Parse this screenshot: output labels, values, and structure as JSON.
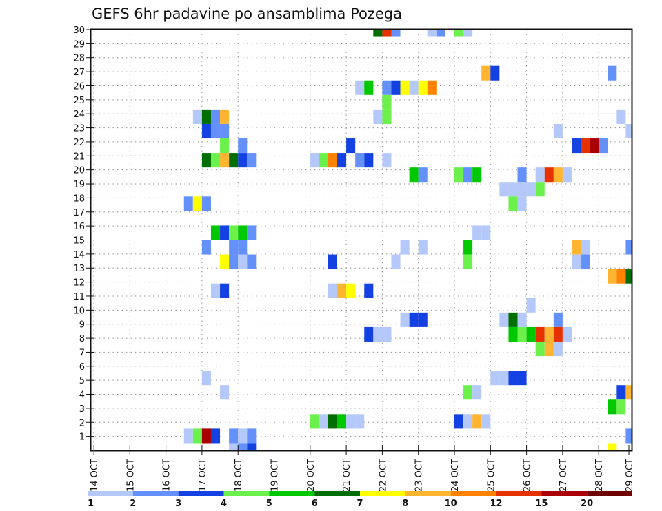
{
  "chart_data": {
    "type": "heatmap",
    "title": "GEFS 6hr padavine po ansamblima Pozega",
    "xlabel": "",
    "ylabel": "",
    "x_tick_labels": [
      "14 OCT",
      "15 OCT",
      "16 OCT",
      "17 OCT",
      "18 OCT",
      "19 OCT",
      "20 OCT",
      "21 OCT",
      "22 OCT",
      "23 OCT",
      "24 OCT",
      "25 OCT",
      "26 OCT",
      "27 OCT",
      "28 OCT",
      "29 OCT"
    ],
    "y_tick_labels": [
      "1",
      "2",
      "3",
      "4",
      "5",
      "6",
      "7",
      "8",
      "9",
      "10",
      "11",
      "12",
      "13",
      "14",
      "15",
      "16",
      "17",
      "18",
      "19",
      "20",
      "21",
      "22",
      "23",
      "24",
      "25",
      "26",
      "27",
      "28",
      "29",
      "30"
    ],
    "ylim": [
      0,
      30
    ],
    "members": 30,
    "time_step_hours": 6,
    "time_columns": 60,
    "grid": true,
    "colorbar": {
      "placement": "bottom",
      "levels": [
        1,
        2,
        3,
        4,
        5,
        6,
        7,
        8,
        10,
        12,
        15,
        20
      ],
      "colors": [
        "#b4c8fa",
        "#6490fa",
        "#1441e1",
        "#6cf04c",
        "#00c800",
        "#006e00",
        "#ffff00",
        "#ffb432",
        "#ff8200",
        "#e63200",
        "#aa0000",
        "#6e0000"
      ]
    },
    "cells_format": [
      "hours_since_14_OCT_00Z",
      "member",
      "precip_class_lower_bound_mm"
    ],
    "cells": [
      [
        186,
        29,
        6
      ],
      [
        192,
        29,
        12
      ],
      [
        198,
        29,
        2
      ],
      [
        222,
        29,
        1
      ],
      [
        228,
        29,
        2
      ],
      [
        240,
        29,
        4
      ],
      [
        246,
        29,
        1
      ],
      [
        258,
        26,
        8
      ],
      [
        264,
        26,
        3
      ],
      [
        342,
        26,
        2
      ],
      [
        174,
        25,
        1
      ],
      [
        180,
        25,
        5
      ],
      [
        192,
        25,
        2
      ],
      [
        198,
        25,
        3
      ],
      [
        204,
        25,
        7
      ],
      [
        210,
        25,
        1
      ],
      [
        216,
        25,
        7
      ],
      [
        222,
        25,
        10
      ],
      [
        192,
        24,
        4
      ],
      [
        66,
        23,
        1
      ],
      [
        72,
        23,
        6
      ],
      [
        78,
        23,
        2
      ],
      [
        84,
        23,
        8
      ],
      [
        186,
        23,
        1
      ],
      [
        192,
        23,
        4
      ],
      [
        348,
        23,
        1
      ],
      [
        72,
        22,
        3
      ],
      [
        78,
        22,
        2
      ],
      [
        84,
        22,
        2
      ],
      [
        306,
        22,
        1
      ],
      [
        354,
        22,
        1
      ],
      [
        84,
        21,
        4
      ],
      [
        96,
        21,
        2
      ],
      [
        168,
        21,
        3
      ],
      [
        318,
        21,
        3
      ],
      [
        324,
        21,
        12
      ],
      [
        330,
        21,
        15
      ],
      [
        336,
        21,
        2
      ],
      [
        72,
        20,
        6
      ],
      [
        78,
        20,
        4
      ],
      [
        84,
        20,
        8
      ],
      [
        90,
        20,
        6
      ],
      [
        96,
        20,
        3
      ],
      [
        102,
        20,
        2
      ],
      [
        144,
        20,
        1
      ],
      [
        150,
        20,
        4
      ],
      [
        156,
        20,
        10
      ],
      [
        162,
        20,
        3
      ],
      [
        174,
        20,
        2
      ],
      [
        180,
        20,
        3
      ],
      [
        192,
        20,
        1
      ],
      [
        210,
        19,
        5
      ],
      [
        216,
        19,
        2
      ],
      [
        240,
        19,
        4
      ],
      [
        246,
        19,
        2
      ],
      [
        252,
        19,
        5
      ],
      [
        282,
        19,
        2
      ],
      [
        294,
        19,
        1
      ],
      [
        300,
        19,
        12
      ],
      [
        306,
        19,
        8
      ],
      [
        312,
        19,
        1
      ],
      [
        270,
        18,
        1
      ],
      [
        276,
        18,
        1
      ],
      [
        282,
        18,
        1
      ],
      [
        288,
        18,
        1
      ],
      [
        294,
        18,
        4
      ],
      [
        60,
        17,
        2
      ],
      [
        66,
        17,
        7
      ],
      [
        72,
        17,
        2
      ],
      [
        276,
        17,
        4
      ],
      [
        282,
        17,
        1
      ],
      [
        78,
        15,
        5
      ],
      [
        84,
        15,
        3
      ],
      [
        90,
        15,
        4
      ],
      [
        96,
        15,
        5
      ],
      [
        102,
        15,
        2
      ],
      [
        252,
        15,
        1
      ],
      [
        258,
        15,
        1
      ],
      [
        72,
        14,
        2
      ],
      [
        90,
        14,
        2
      ],
      [
        96,
        14,
        2
      ],
      [
        204,
        14,
        1
      ],
      [
        216,
        14,
        1
      ],
      [
        246,
        14,
        5
      ],
      [
        318,
        14,
        8
      ],
      [
        324,
        14,
        1
      ],
      [
        354,
        14,
        2
      ],
      [
        84,
        13,
        7
      ],
      [
        90,
        13,
        2
      ],
      [
        96,
        13,
        1
      ],
      [
        102,
        13,
        2
      ],
      [
        156,
        13,
        3
      ],
      [
        198,
        13,
        1
      ],
      [
        246,
        13,
        4
      ],
      [
        318,
        13,
        1
      ],
      [
        324,
        13,
        2
      ],
      [
        342,
        12,
        8
      ],
      [
        348,
        12,
        10
      ],
      [
        354,
        12,
        6
      ],
      [
        78,
        11,
        1
      ],
      [
        84,
        11,
        3
      ],
      [
        156,
        11,
        1
      ],
      [
        162,
        11,
        8
      ],
      [
        168,
        11,
        7
      ],
      [
        180,
        11,
        3
      ],
      [
        288,
        10,
        1
      ],
      [
        204,
        9,
        1
      ],
      [
        210,
        9,
        3
      ],
      [
        216,
        9,
        3
      ],
      [
        270,
        9,
        1
      ],
      [
        276,
        9,
        6
      ],
      [
        282,
        9,
        1
      ],
      [
        306,
        9,
        2
      ],
      [
        180,
        8,
        3
      ],
      [
        186,
        8,
        1
      ],
      [
        192,
        8,
        1
      ],
      [
        276,
        8,
        5
      ],
      [
        282,
        8,
        4
      ],
      [
        288,
        8,
        5
      ],
      [
        294,
        8,
        12
      ],
      [
        300,
        8,
        8
      ],
      [
        306,
        8,
        12
      ],
      [
        312,
        8,
        1
      ],
      [
        294,
        7,
        4
      ],
      [
        300,
        7,
        8
      ],
      [
        306,
        7,
        1
      ],
      [
        72,
        5,
        1
      ],
      [
        264,
        5,
        1
      ],
      [
        270,
        5,
        1
      ],
      [
        276,
        5,
        3
      ],
      [
        282,
        5,
        3
      ],
      [
        84,
        4,
        1
      ],
      [
        246,
        4,
        4
      ],
      [
        252,
        4,
        1
      ],
      [
        348,
        4,
        3
      ],
      [
        354,
        4,
        8
      ],
      [
        342,
        3,
        5
      ],
      [
        348,
        3,
        4
      ],
      [
        144,
        2,
        4
      ],
      [
        150,
        2,
        1
      ],
      [
        156,
        2,
        6
      ],
      [
        162,
        2,
        5
      ],
      [
        168,
        2,
        1
      ],
      [
        174,
        2,
        1
      ],
      [
        240,
        2,
        3
      ],
      [
        246,
        2,
        1
      ],
      [
        252,
        2,
        8
      ],
      [
        258,
        2,
        1
      ],
      [
        60,
        1,
        1
      ],
      [
        66,
        1,
        4
      ],
      [
        72,
        1,
        15
      ],
      [
        78,
        1,
        3
      ],
      [
        90,
        1,
        2
      ],
      [
        96,
        1,
        1
      ],
      [
        102,
        1,
        2
      ],
      [
        354,
        1,
        2
      ],
      [
        90,
        0,
        1
      ],
      [
        96,
        0,
        2
      ],
      [
        102,
        0,
        3
      ],
      [
        342,
        0,
        7
      ]
    ]
  }
}
